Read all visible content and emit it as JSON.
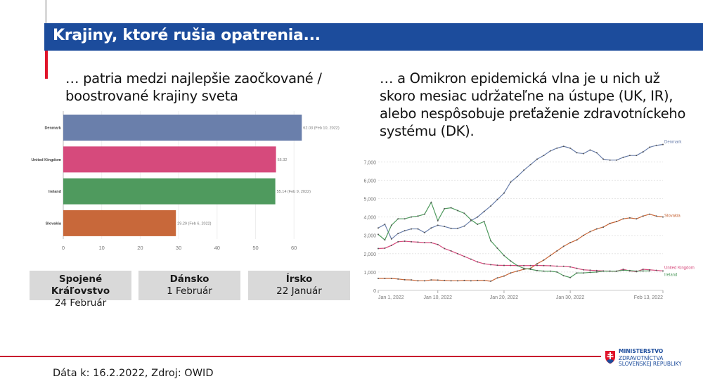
{
  "header": {
    "title": "Krajiny, ktoré rušia opatrenia..."
  },
  "left": {
    "subtitle": "… patria medzi najlepšie zaočkované / boostrované krajiny sveta"
  },
  "right": {
    "subtitle": "… a Omikron epidemická vlna je u nich už skoro mesiac udržateľne na ústupe (UK, IR), alebo nespôsobuje preťaženie zdravotníckeho systému (DK)."
  },
  "boxes": [
    {
      "country": "Spojené Kráľovstvo",
      "date": "24 Február"
    },
    {
      "country": "Dánsko",
      "date": "1 Február"
    },
    {
      "country": "Írsko",
      "date": "22 Január"
    }
  ],
  "footer": {
    "source": "Dáta k: 16.2.2022, Zdroj: OWID"
  },
  "logo": {
    "line1": "MINISTERSTVO",
    "line2": "ZDRAVOTNÍCTVA",
    "line3": "SLOVENSKEJ REPUBLIKY"
  },
  "colors": {
    "header": "#1c4c9c",
    "accent_red": "#e0142a",
    "Denmark": "#6a7fab",
    "United Kingdom": "#d64a7c",
    "Ireland": "#4f9a5e",
    "Slovakia": "#c8683a"
  },
  "chart_data": [
    {
      "type": "bar",
      "orientation": "horizontal",
      "categories": [
        "Denmark",
        "United Kingdom",
        "Ireland",
        "Slovakia"
      ],
      "values": [
        62.03,
        55.32,
        55.14,
        29.29
      ],
      "data_labels": [
        "62.03 (Feb 10, 2022)",
        "55.32",
        "55.14 (Feb 9, 2022)",
        "29.29 (Feb 6, 2022)"
      ],
      "xlim": [
        0,
        65
      ],
      "xticks": [
        0,
        10,
        20,
        30,
        40,
        50,
        60
      ],
      "grid": true
    },
    {
      "type": "line",
      "x_start": "2022-01-01",
      "x_end": "2022-02-13",
      "xtick_labels": [
        "Jan 1, 2022",
        "Jan 10, 2022",
        "Jan 20, 2022",
        "Jan 30, 2022",
        "Feb 13, 2022"
      ],
      "xtick_dates": [
        "2022-01-01",
        "2022-01-10",
        "2022-01-20",
        "2022-01-30",
        "2022-02-13"
      ],
      "yticks": [
        0,
        1000,
        2000,
        3000,
        4000,
        5000,
        6000,
        7000
      ],
      "ytick_labels": [
        "0",
        "1,000",
        "2,000",
        "3,000",
        "4,000",
        "5,000",
        "6,000",
        "7,000"
      ],
      "ylim": [
        0,
        8000
      ],
      "grid": true,
      "legend": "end-of-line labels",
      "series": [
        {
          "name": "Denmark",
          "values": [
            3400,
            3600,
            2800,
            3100,
            3250,
            3350,
            3350,
            3150,
            3400,
            3550,
            3480,
            3380,
            3380,
            3500,
            3800,
            4000,
            4300,
            4600,
            4950,
            5300,
            5900,
            6200,
            6550,
            6850,
            7150,
            7350,
            7600,
            7750,
            7850,
            7750,
            7500,
            7450,
            7650,
            7500,
            7150,
            7100,
            7100,
            7250,
            7350,
            7350,
            7550,
            7800,
            7900,
            7950
          ]
        },
        {
          "name": "Slovakia",
          "values": [
            650,
            650,
            650,
            620,
            580,
            570,
            520,
            520,
            570,
            560,
            540,
            520,
            520,
            540,
            520,
            540,
            540,
            500,
            680,
            780,
            950,
            1050,
            1150,
            1200,
            1450,
            1650,
            1900,
            2150,
            2400,
            2600,
            2750,
            3000,
            3200,
            3350,
            3450,
            3650,
            3750,
            3900,
            3950,
            3900,
            4050,
            4150,
            4050,
            4000
          ]
        },
        {
          "name": "United Kingdom",
          "values": [
            2280,
            2300,
            2450,
            2650,
            2680,
            2650,
            2630,
            2600,
            2600,
            2500,
            2280,
            2150,
            2000,
            1850,
            1700,
            1550,
            1450,
            1400,
            1370,
            1360,
            1360,
            1350,
            1350,
            1350,
            1360,
            1350,
            1340,
            1320,
            1310,
            1280,
            1200,
            1120,
            1100,
            1080,
            1060,
            1050,
            1040,
            1150,
            1060,
            1020,
            1150,
            1120,
            1090,
            1060
          ]
        },
        {
          "name": "Ireland",
          "values": [
            3050,
            2750,
            3550,
            3900,
            3900,
            4000,
            4050,
            4150,
            4800,
            3800,
            4450,
            4500,
            4350,
            4200,
            3850,
            3600,
            3750,
            2700,
            2300,
            1900,
            1600,
            1350,
            1200,
            1150,
            1080,
            1050,
            1050,
            1000,
            800,
            700,
            950,
            950,
            980,
            1000,
            1050,
            1050,
            1050,
            1100,
            1080,
            1050,
            1060,
            1060,
            null,
            null
          ]
        }
      ]
    }
  ]
}
